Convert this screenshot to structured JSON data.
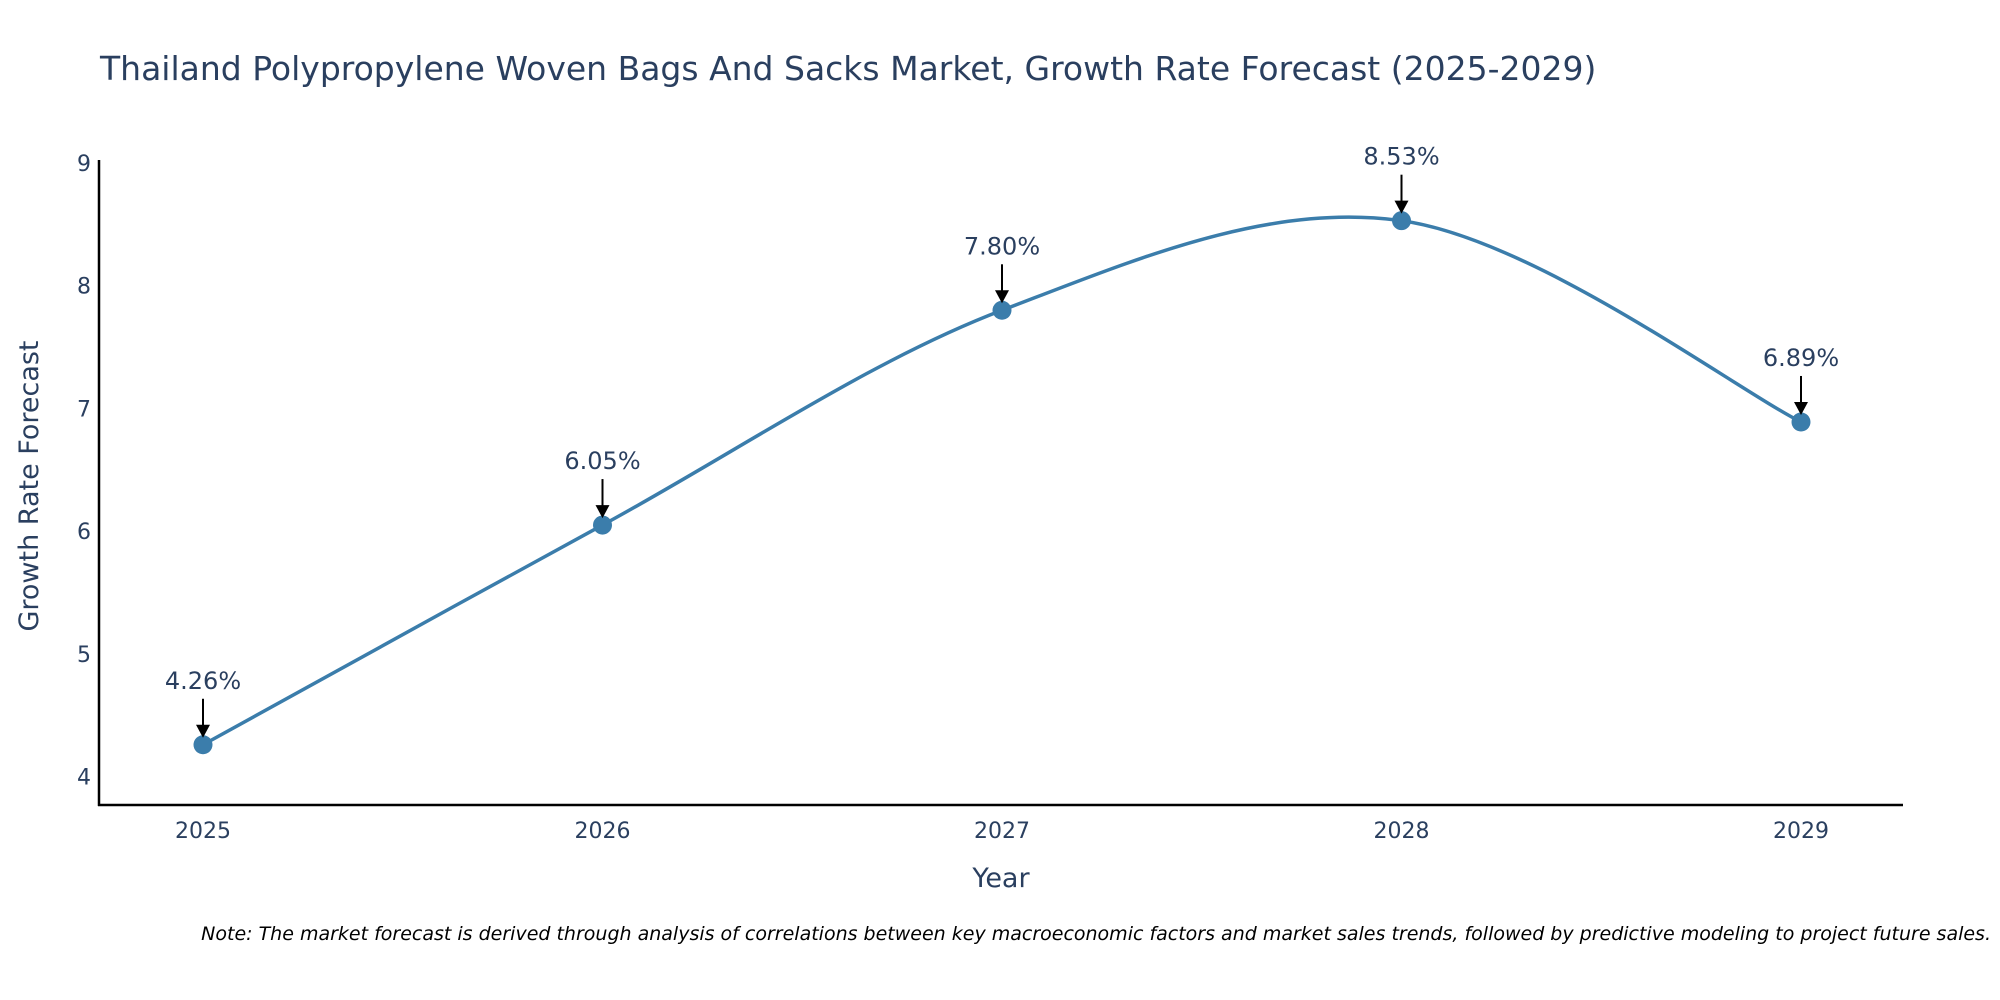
{
  "chart_data": {
    "type": "line",
    "title": "Thailand Polypropylene Woven Bags And Sacks Market, Growth Rate Forecast (2025-2029)",
    "xlabel": "Year",
    "ylabel": "Growth Rate Forecast",
    "categories": [
      "2025",
      "2026",
      "2027",
      "2028",
      "2029"
    ],
    "values": [
      4.26,
      6.05,
      7.8,
      8.53,
      6.89
    ],
    "labels": [
      "4.26%",
      "6.05%",
      "7.80%",
      "8.53%",
      "6.89%"
    ],
    "yticks": [
      4,
      5,
      6,
      7,
      8,
      9
    ],
    "ylim": [
      3.75,
      9.05
    ],
    "line_color": "#3b7dab",
    "marker_color": "#3b7dab",
    "grid": false,
    "legend": "none"
  },
  "note": "Note: The market forecast is derived through analysis of correlations between key macroeconomic factors and market sales trends, followed by predictive modeling to project future sales."
}
